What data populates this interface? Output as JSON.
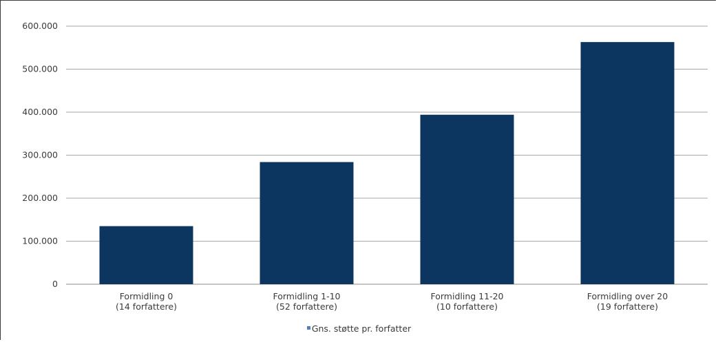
{
  "chart_data": {
    "type": "bar",
    "categories": [
      [
        "Formidling 0",
        "(14 forfattere)"
      ],
      [
        "Formidling 1-10",
        "(52 forfattere)"
      ],
      [
        "Formidling 11-20",
        "(10 forfattere)"
      ],
      [
        "Formidling over 20",
        "(19 forfattere)"
      ]
    ],
    "series": [
      {
        "name": "Gns. støtte pr. forfatter",
        "values": [
          135000,
          284000,
          394000,
          563000
        ]
      }
    ],
    "ylim": [
      0,
      600000
    ],
    "yticks": [
      "0",
      "100.000",
      "200.000",
      "300.000",
      "400.000",
      "500.000",
      "600.000"
    ],
    "grid": true,
    "legend_position": "bottom",
    "bar_color": "#0c3660",
    "legend_marker_color": "#4f81bd"
  }
}
